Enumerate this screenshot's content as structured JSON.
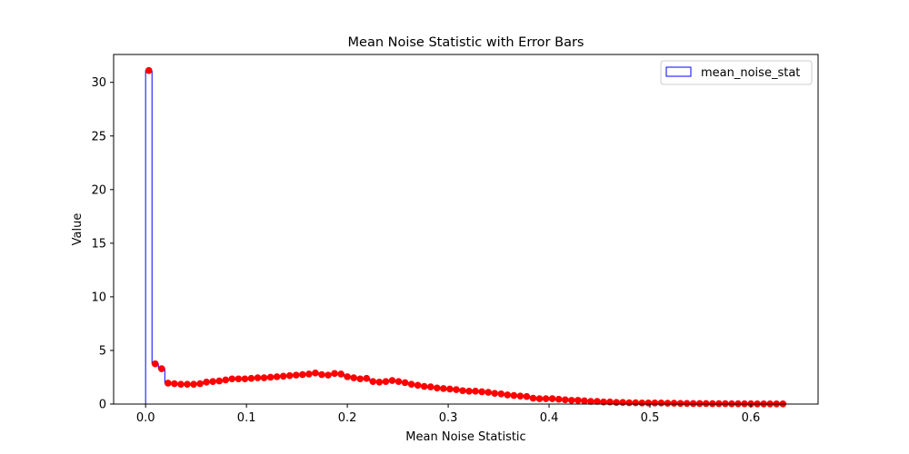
{
  "chart_data": {
    "type": "bar",
    "title": "Mean Noise Statistic with Error Bars",
    "xlabel": "Mean Noise Statistic",
    "ylabel": "Value",
    "xlim": [
      -0.0317,
      0.6667
    ],
    "ylim": [
      0,
      32.6
    ],
    "xticks": [
      0.0,
      0.1,
      0.2,
      0.3,
      0.4,
      0.5,
      0.6
    ],
    "xtick_labels": [
      "0.0",
      "0.1",
      "0.2",
      "0.3",
      "0.4",
      "0.5",
      "0.6"
    ],
    "yticks": [
      0,
      5,
      10,
      15,
      20,
      25,
      30
    ],
    "ytick_labels": [
      "0",
      "5",
      "10",
      "15",
      "20",
      "25",
      "30"
    ],
    "legend_position": "top-right",
    "grid": false,
    "bar_edge_color": "#0000ff",
    "error_color": "#ff0000",
    "series": [
      {
        "name": "mean_noise_stat",
        "bin_width": 0.00635,
        "x": [
          0,
          0.00635,
          0.0127,
          0.01905,
          0.0254,
          0.03175,
          0.0381,
          0.04445,
          0.0508,
          0.05715,
          0.0635,
          0.06985,
          0.0762,
          0.08255,
          0.0889,
          0.09525,
          0.1016,
          0.10795,
          0.1143,
          0.12065,
          0.127,
          0.13335,
          0.1397,
          0.14605,
          0.1524,
          0.15875,
          0.1651,
          0.17145,
          0.1778,
          0.18415,
          0.1905,
          0.19685,
          0.2032,
          0.20955,
          0.2159,
          0.22225,
          0.2286,
          0.23495,
          0.2413,
          0.24765,
          0.254,
          0.26035,
          0.2667,
          0.27305,
          0.2794,
          0.28575,
          0.2921,
          0.29845,
          0.3048,
          0.31115,
          0.3175,
          0.32385,
          0.3302,
          0.33655,
          0.3429,
          0.34925,
          0.3556,
          0.36195,
          0.3683,
          0.37465,
          0.381,
          0.38735,
          0.3937,
          0.40005,
          0.4064,
          0.41275,
          0.4191,
          0.42545,
          0.4318,
          0.43815,
          0.4445,
          0.45085,
          0.4572,
          0.46355,
          0.4699,
          0.47625,
          0.4826,
          0.48895,
          0.4953,
          0.50165,
          0.508,
          0.51435,
          0.5207,
          0.52705,
          0.5334,
          0.53975,
          0.5461,
          0.55245,
          0.5588,
          0.56515,
          0.5715,
          0.57785,
          0.5842,
          0.59055,
          0.5969,
          0.60325,
          0.6096,
          0.61595,
          0.6223,
          0.62865
        ],
        "values": [
          31.1,
          3.75,
          3.3,
          1.95,
          1.9,
          1.85,
          1.85,
          1.85,
          1.9,
          2.05,
          2.1,
          2.15,
          2.25,
          2.35,
          2.35,
          2.35,
          2.4,
          2.45,
          2.45,
          2.5,
          2.55,
          2.6,
          2.65,
          2.7,
          2.75,
          2.8,
          2.9,
          2.75,
          2.7,
          2.85,
          2.8,
          2.55,
          2.45,
          2.35,
          2.4,
          2.1,
          2.05,
          2.1,
          2.2,
          2.1,
          2.0,
          1.85,
          1.75,
          1.65,
          1.6,
          1.5,
          1.45,
          1.4,
          1.35,
          1.25,
          1.2,
          1.2,
          1.15,
          1.1,
          1.0,
          0.95,
          0.85,
          0.8,
          0.75,
          0.7,
          0.55,
          0.5,
          0.5,
          0.5,
          0.45,
          0.4,
          0.35,
          0.35,
          0.3,
          0.25,
          0.25,
          0.2,
          0.2,
          0.15,
          0.15,
          0.12,
          0.12,
          0.1,
          0.1,
          0.1,
          0.1,
          0.08,
          0.08,
          0.06,
          0.06,
          0.05,
          0.05,
          0.05,
          0.04,
          0.04,
          0.04,
          0.03,
          0.03,
          0.03,
          0.03,
          0.02,
          0.02,
          0.02,
          0.02,
          0.02
        ],
        "errors": [
          0.15,
          0.15,
          0.15,
          0.1,
          0.1,
          0.1,
          0.1,
          0.1,
          0.1,
          0.1,
          0.1,
          0.1,
          0.1,
          0.1,
          0.1,
          0.1,
          0.1,
          0.1,
          0.1,
          0.1,
          0.1,
          0.1,
          0.1,
          0.1,
          0.1,
          0.1,
          0.1,
          0.1,
          0.1,
          0.1,
          0.1,
          0.1,
          0.1,
          0.1,
          0.1,
          0.1,
          0.1,
          0.1,
          0.1,
          0.1,
          0.1,
          0.1,
          0.1,
          0.1,
          0.1,
          0.1,
          0.1,
          0.1,
          0.1,
          0.1,
          0.1,
          0.1,
          0.1,
          0.1,
          0.1,
          0.1,
          0.1,
          0.1,
          0.1,
          0.1,
          0.1,
          0.1,
          0.1,
          0.1,
          0.1,
          0.1,
          0.1,
          0.1,
          0.1,
          0.1,
          0.1,
          0.1,
          0.1,
          0.1,
          0.1,
          0.1,
          0.1,
          0.1,
          0.1,
          0.1,
          0.1,
          0.1,
          0.1,
          0.1,
          0.1,
          0.1,
          0.1,
          0.1,
          0.1,
          0.1,
          0.1,
          0.1,
          0.1,
          0.1,
          0.1,
          0.1,
          0.1,
          0.1,
          0.1,
          0.1
        ]
      }
    ]
  }
}
